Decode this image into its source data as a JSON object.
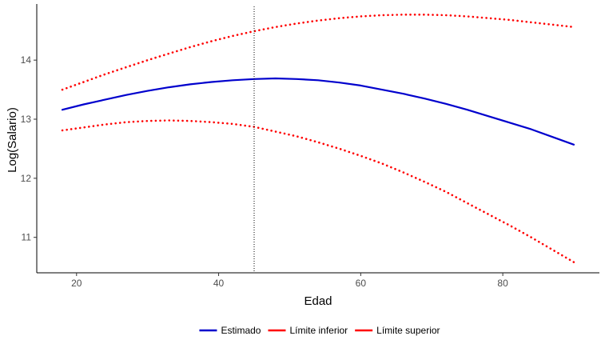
{
  "chart_data": {
    "type": "line",
    "title": "",
    "xlabel": "Edad",
    "ylabel": "Log(Salario)",
    "xlim": [
      14.4,
      93.6
    ],
    "ylim": [
      10.4,
      14.95
    ],
    "x_ticks": [
      20,
      40,
      60,
      80
    ],
    "y_ticks": [
      11,
      12,
      13,
      14
    ],
    "grid": false,
    "vline": {
      "x": 45,
      "style": "dotted"
    },
    "legend_position": "bottom",
    "x": [
      18,
      21,
      24,
      27,
      30,
      33,
      36,
      39,
      42,
      45,
      48,
      51,
      54,
      57,
      60,
      63,
      66,
      69,
      72,
      75,
      78,
      81,
      84,
      87,
      90
    ],
    "series": [
      {
        "name": "Estimado",
        "color": "#0000CD",
        "style": "solid",
        "values": [
          13.16,
          13.25,
          13.33,
          13.41,
          13.48,
          13.54,
          13.59,
          13.63,
          13.66,
          13.68,
          13.69,
          13.68,
          13.66,
          13.62,
          13.57,
          13.5,
          13.43,
          13.35,
          13.26,
          13.16,
          13.05,
          12.94,
          12.83,
          12.7,
          12.57
        ]
      },
      {
        "name": "Límite inferior",
        "color": "#FF0000",
        "style": "dotted",
        "values": [
          12.81,
          12.86,
          12.91,
          12.95,
          12.97,
          12.98,
          12.97,
          12.95,
          12.92,
          12.87,
          12.79,
          12.71,
          12.61,
          12.5,
          12.38,
          12.25,
          12.1,
          11.94,
          11.77,
          11.58,
          11.39,
          11.2,
          11.0,
          10.79,
          10.58
        ]
      },
      {
        "name": "Límite superior",
        "color": "#FF0000",
        "style": "dotted",
        "values": [
          13.5,
          13.63,
          13.76,
          13.88,
          14.0,
          14.11,
          14.22,
          14.32,
          14.41,
          14.49,
          14.56,
          14.62,
          14.67,
          14.71,
          14.74,
          14.76,
          14.77,
          14.77,
          14.76,
          14.74,
          14.71,
          14.68,
          14.64,
          14.6,
          14.56
        ]
      }
    ]
  }
}
